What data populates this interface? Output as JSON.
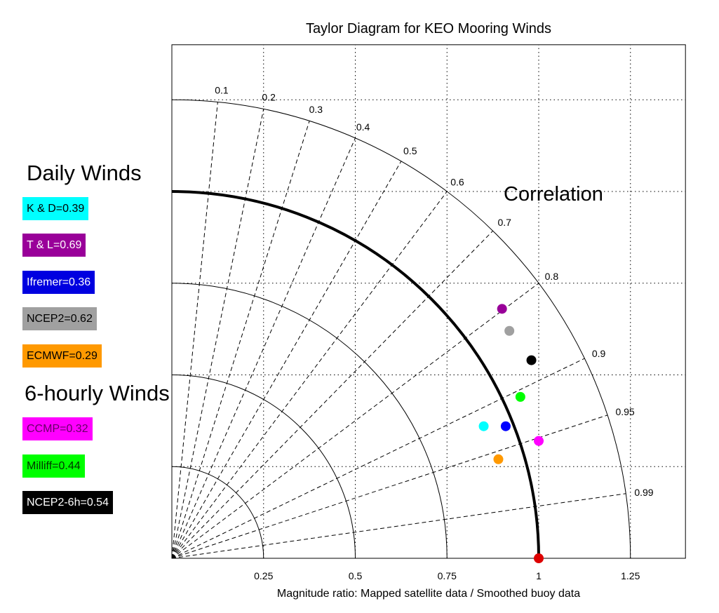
{
  "chart_data": {
    "type": "scatter",
    "subtype": "taylor-diagram",
    "title": "Taylor Diagram for KEO Mooring Winds",
    "xlabel": "Magnitude ratio: Mapped satellite data / Smoothed buoy data",
    "ylabel": "",
    "xlim": [
      0,
      1.4
    ],
    "ylim": [
      0,
      1.4
    ],
    "grid": true,
    "x_ticks": [
      "0.25",
      "0.5",
      "0.75",
      "1",
      "1.25"
    ],
    "radial_arcs": [
      0.25,
      0.5,
      0.75,
      1.0,
      1.25
    ],
    "reference_arc": 1.0,
    "correlation_label": "Correlation",
    "correlation_ticks": [
      "0.1",
      "0.2",
      "0.3",
      "0.4",
      "0.5",
      "0.6",
      "0.7",
      "0.8",
      "0.9",
      "0.95",
      "0.99"
    ],
    "legend_groups": [
      {
        "heading": "Daily Winds",
        "items": [
          {
            "label": "K & D=0.39",
            "color": "#00ffff",
            "text_color": "#000000"
          },
          {
            "label": "T & L=0.69",
            "color": "#990099",
            "text_color": "#ffffff"
          },
          {
            "label": "Ifremer=0.36",
            "color": "#0000e0",
            "text_color": "#ffffff"
          },
          {
            "label": "NCEP2=0.62",
            "color": "#a0a0a0",
            "text_color": "#000000"
          },
          {
            "label": "ECMWF=0.29",
            "color": "#ff9900",
            "text_color": "#000000"
          }
        ]
      },
      {
        "heading": "6-hourly Winds",
        "items": [
          {
            "label": "CCMP=0.32",
            "color": "#ff00ff",
            "text_color": "#660066"
          },
          {
            "label": "Milliff=0.44",
            "color": "#00ff00",
            "text_color": "#003300"
          },
          {
            "label": "NCEP2-6h=0.54",
            "color": "#000000",
            "text_color": "#ffffff"
          }
        ]
      }
    ],
    "points": [
      {
        "series": "K & D",
        "x": 0.85,
        "y": 0.36,
        "color": "#00ffff"
      },
      {
        "series": "T & L",
        "x": 0.9,
        "y": 0.68,
        "color": "#990099"
      },
      {
        "series": "Ifremer",
        "x": 0.91,
        "y": 0.36,
        "color": "#0000ff"
      },
      {
        "series": "NCEP2",
        "x": 0.92,
        "y": 0.62,
        "color": "#a0a0a0"
      },
      {
        "series": "ECMWF",
        "x": 0.89,
        "y": 0.27,
        "color": "#ff9900"
      },
      {
        "series": "CCMP",
        "x": 1.0,
        "y": 0.32,
        "color": "#ff00ff"
      },
      {
        "series": "Milliff",
        "x": 0.95,
        "y": 0.44,
        "color": "#00ff00"
      },
      {
        "series": "NCEP2-6h",
        "x": 0.98,
        "y": 0.54,
        "color": "#000000"
      },
      {
        "series": "reference",
        "x": 1.0,
        "y": 0.0,
        "color": "#dd0000"
      }
    ]
  }
}
